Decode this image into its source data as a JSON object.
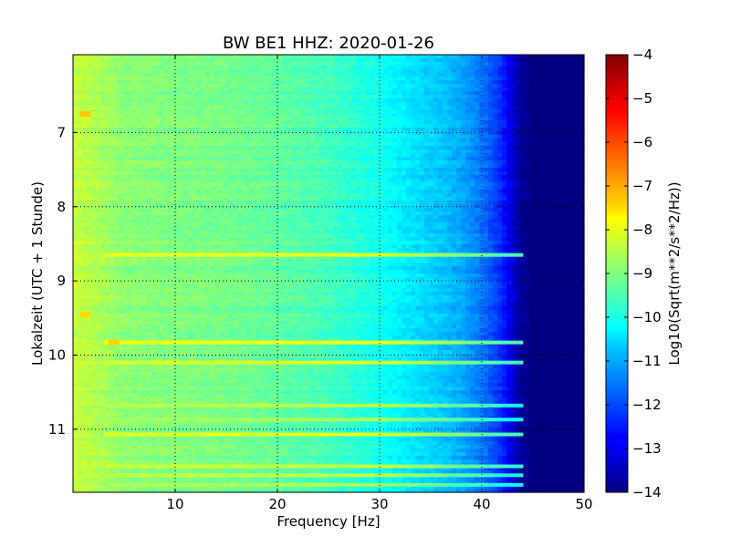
{
  "chart_data": {
    "type": "heatmap",
    "title": "BW BE1 HHZ: 2020-01-26",
    "xlabel": "Frequency [Hz]",
    "ylabel": "Lokalzeit (UTC + 1 Stunde)",
    "xlim": [
      0,
      50
    ],
    "ylim": [
      5.95,
      11.85
    ],
    "y_inverted": true,
    "x_ticks": [
      10,
      20,
      30,
      40,
      50
    ],
    "y_ticks": [
      7,
      8,
      9,
      10,
      11
    ],
    "grid": true,
    "colormap": "jet",
    "colorbar": {
      "label": "Log10(Sqrt(m**2/s**2/Hz))",
      "range": [
        -14,
        -4
      ],
      "ticks": [
        -4,
        -5,
        -6,
        -7,
        -8,
        -9,
        -10,
        -11,
        -12,
        -13,
        -14
      ]
    },
    "spectrum_profile": {
      "frequency_hz": [
        0,
        2,
        5,
        10,
        15,
        20,
        25,
        30,
        33,
        36,
        38,
        40,
        42,
        43,
        44,
        45,
        50
      ],
      "log10_amplitude": [
        -8.3,
        -8.5,
        -8.9,
        -9.0,
        -9.1,
        -9.3,
        -9.6,
        -10.1,
        -10.5,
        -10.8,
        -11.1,
        -11.6,
        -12.4,
        -13.2,
        -13.8,
        -14,
        -14
      ]
    },
    "horizontal_bands": [
      {
        "time": 8.65,
        "level": -8.0
      },
      {
        "time": 9.83,
        "level": -7.9
      },
      {
        "time": 10.1,
        "level": -8.1
      },
      {
        "time": 10.68,
        "level": -8.4
      },
      {
        "time": 10.87,
        "level": -8.6
      },
      {
        "time": 11.07,
        "level": -8.0
      },
      {
        "time": 11.5,
        "level": -8.3
      },
      {
        "time": 11.62,
        "level": -8.4
      },
      {
        "time": 11.75,
        "level": -8.6
      }
    ],
    "low_frequency_spots": [
      {
        "time": 6.75,
        "frequency": 1.2,
        "level": -7.2
      },
      {
        "time": 9.45,
        "frequency": 1.2,
        "level": -7.4
      },
      {
        "time": 9.83,
        "frequency": 4.0,
        "level": -7.3
      }
    ]
  }
}
